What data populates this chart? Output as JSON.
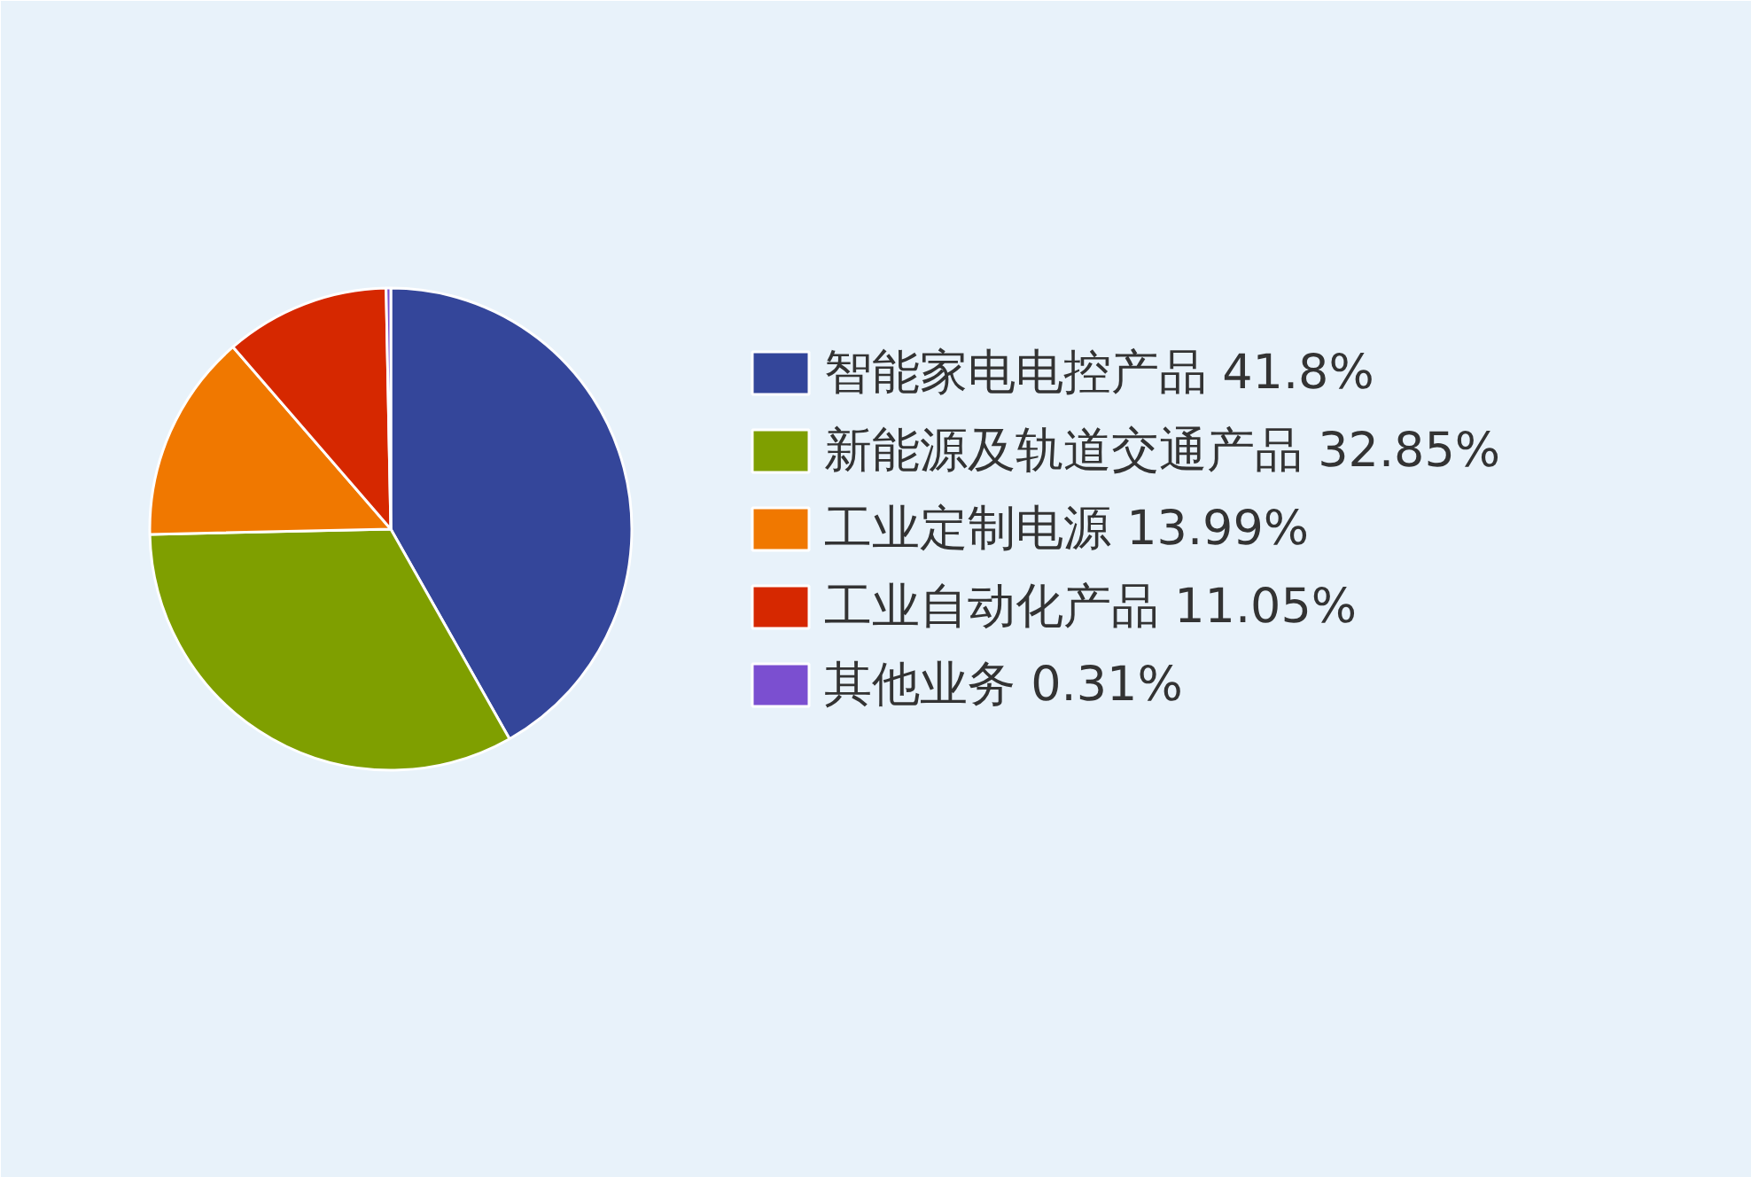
{
  "chart_data": {
    "type": "pie",
    "categories": [
      "智能家电电控产品 41.8%",
      "新能源及轨道交通产品 32.85%",
      "工业定制电源 13.99%",
      "工业自动化产品 11.05%",
      "其他业务 0.31%"
    ],
    "values": [
      41.8,
      32.85,
      13.99,
      11.05,
      0.31
    ],
    "colors": [
      "#34469a",
      "#7f9f00",
      "#f07800",
      "#d62800",
      "#7b4fd0"
    ],
    "legend": "right"
  }
}
